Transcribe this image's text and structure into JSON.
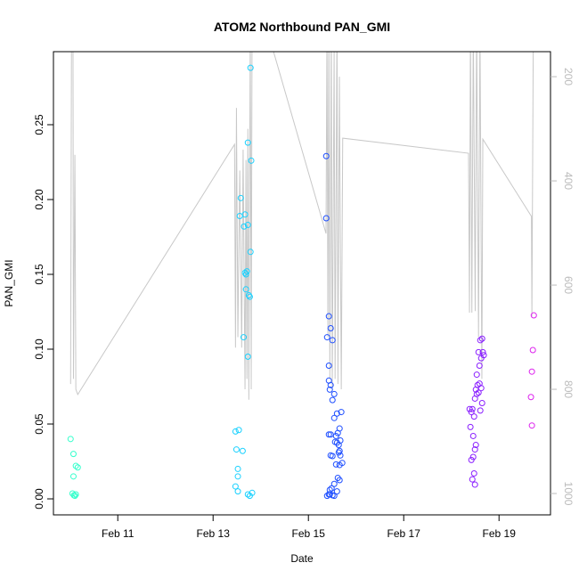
{
  "chart_data": {
    "type": "scatter",
    "title": "ATOM2 Northbound PAN_GMI",
    "x_label": "Date",
    "y_label": "PAN_GMI",
    "xlim": [
      9.65,
      20.08
    ],
    "xticks": [
      {
        "value": 11,
        "label": "Feb 11"
      },
      {
        "value": 13,
        "label": "Feb 13"
      },
      {
        "value": 15,
        "label": "Feb 15"
      },
      {
        "value": 17,
        "label": "Feb 17"
      },
      {
        "value": 19,
        "label": "Feb 19"
      }
    ],
    "ylim": [
      -0.0107,
      0.2988
    ],
    "yticks": [
      {
        "value": 0,
        "label": "0.00"
      },
      0.05,
      {
        "value": 0.1,
        "label": "0.10"
      },
      0.15,
      {
        "value": 0.2,
        "label": "0.20"
      },
      0.25
    ],
    "y2lim": [
      1041,
      152
    ],
    "y2ticks": [
      200,
      400,
      600,
      800,
      1000
    ],
    "y2_color": "#bbbbbb",
    "series": [
      {
        "type": "line",
        "axis": "y2",
        "color": "#c8c8c8",
        "x": [
          10.01,
          10.03,
          10.06,
          10.07,
          10.1,
          10.12,
          10.16,
          13.45,
          13.47,
          13.49,
          13.52,
          13.56,
          13.6,
          13.63,
          13.67,
          13.69,
          13.71,
          13.73,
          13.75,
          13.78,
          13.8,
          13.82,
          15.37,
          15.39,
          15.41,
          15.43,
          15.45,
          15.48,
          15.5,
          15.54,
          15.56,
          15.6,
          15.62,
          15.65,
          15.69,
          15.72,
          18.36,
          18.38,
          18.4,
          18.43,
          18.46,
          18.5,
          18.53,
          18.57,
          18.6,
          18.64,
          18.66,
          19.68,
          19.69,
          19.72
        ],
        "values": [
          790,
          100,
          100,
          780,
          350,
          800,
          810,
          330,
          720,
          260,
          700,
          380,
          720,
          340,
          800,
          360,
          780,
          300,
          820,
          100,
          800,
          10,
          501,
          100,
          700,
          100,
          780,
          100,
          800,
          150,
          780,
          100,
          790,
          200,
          800,
          318,
          347,
          653,
          100,
          653,
          100,
          650,
          100,
          700,
          100,
          780,
          320,
          468,
          660,
          100
        ]
      },
      {
        "color": "#33ffcc",
        "x": [
          10.01,
          10.07,
          10.12,
          10.16,
          10.07,
          10.05,
          10.08,
          10.12,
          10.1
        ],
        "values": [
          0.04,
          0.03,
          0.022,
          0.021,
          0.015,
          0.0036,
          0.0024,
          0.003,
          0.002
        ]
      },
      {
        "color": "#1ad1ff",
        "x": [
          13.785,
          13.73,
          13.8,
          13.58,
          13.56,
          13.67,
          13.65,
          13.73,
          13.785,
          13.71,
          13.67,
          13.69,
          13.69,
          13.75,
          13.77,
          13.64,
          13.73,
          13.54,
          13.47,
          13.49,
          13.62,
          13.52,
          13.52,
          13.47,
          13.52,
          13.73,
          13.82,
          13.77
        ],
        "values": [
          0.288,
          0.238,
          0.226,
          0.201,
          0.189,
          0.19,
          0.182,
          0.183,
          0.165,
          0.152,
          0.151,
          0.15,
          0.14,
          0.136,
          0.135,
          0.108,
          0.095,
          0.046,
          0.045,
          0.033,
          0.032,
          0.02,
          0.015,
          0.0083,
          0.005,
          0.003,
          0.004,
          0.002
        ]
      },
      {
        "color": "#1f4fff",
        "x": [
          15.374,
          15.374,
          15.43,
          15.467,
          15.393,
          15.505,
          15.43,
          15.43,
          15.467,
          15.449,
          15.542,
          15.505,
          15.6,
          15.69,
          15.542,
          15.654,
          15.617,
          15.58,
          15.43,
          15.467,
          15.67,
          15.6,
          15.56,
          15.636,
          15.654,
          15.636,
          15.467,
          15.505,
          15.67,
          15.71,
          15.654,
          15.58,
          15.617,
          15.654,
          15.542,
          15.486,
          15.449,
          15.449,
          15.6,
          15.43,
          15.505,
          15.393,
          15.542
        ],
        "values": [
          0.229,
          0.1875,
          0.122,
          0.114,
          0.108,
          0.106,
          0.089,
          0.079,
          0.076,
          0.073,
          0.07,
          0.066,
          0.057,
          0.058,
          0.054,
          0.047,
          0.044,
          0.042,
          0.043,
          0.043,
          0.039,
          0.0375,
          0.038,
          0.036,
          0.032,
          0.031,
          0.029,
          0.0286,
          0.029,
          0.024,
          0.0226,
          0.023,
          0.014,
          0.0125,
          0.01,
          0.007,
          0.006,
          0.003,
          0.005,
          0.003,
          0.0024,
          0.002,
          0.002
        ]
      },
      {
        "color": "#8a1fff",
        "x": [
          18.607,
          18.645,
          18.66,
          18.57,
          18.626,
          18.68,
          18.59,
          18.533,
          18.55,
          18.59,
          18.626,
          18.514,
          18.57,
          18.533,
          18.495,
          18.645,
          18.44,
          18.383,
          18.42,
          18.607,
          18.477,
          18.4,
          18.458,
          18.514,
          18.495,
          18.458,
          18.42,
          18.477,
          18.44,
          18.495
        ],
        "values": [
          0.106,
          0.107,
          0.098,
          0.098,
          0.094,
          0.096,
          0.089,
          0.083,
          0.076,
          0.077,
          0.074,
          0.073,
          0.071,
          0.07,
          0.067,
          0.064,
          0.06,
          0.06,
          0.058,
          0.059,
          0.055,
          0.048,
          0.042,
          0.036,
          0.033,
          0.028,
          0.026,
          0.017,
          0.013,
          0.0095
        ]
      },
      {
        "color": "#dd22ee",
        "x": [
          19.73,
          19.71,
          19.69,
          19.67,
          19.69
        ],
        "values": [
          0.1226,
          0.0994,
          0.085,
          0.068,
          0.049
        ]
      }
    ]
  }
}
